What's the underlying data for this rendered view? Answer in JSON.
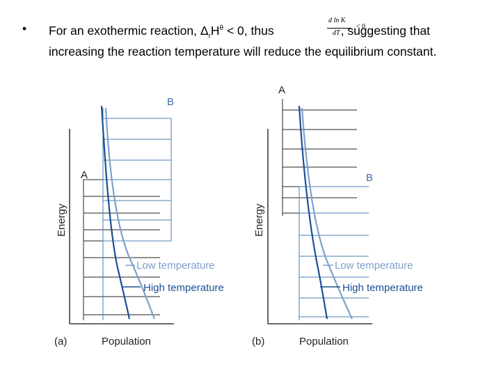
{
  "text": {
    "bullet": "•",
    "line1_a": "For an exothermic reaction, Δ",
    "line1_sub": "r",
    "line1_b": "H",
    "line1_sup": "θ",
    "line1_c": " < 0, thus",
    "line1_d": ", suggesting",
    "line2": "that increasing the reaction temperature will reduce the equilibrium constant."
  },
  "formula": {
    "numerator": "d ln K",
    "denominator": "dT",
    "condition": "< 0"
  },
  "panel_a": {
    "tag": "(a)",
    "y_label": "Energy",
    "x_label": "Population",
    "label_A": "A",
    "label_B": "B",
    "low_label": "Low temperature",
    "high_label": "High temperature"
  },
  "panel_b": {
    "tag": "(b)",
    "y_label": "Energy",
    "x_label": "Population",
    "label_A": "A",
    "label_B": "B",
    "low_label": "Low temperature",
    "high_label": "High temperature"
  },
  "colors": {
    "levels_A": "#222222",
    "levels_B": "#4a7fb5",
    "high_curve": "#1a4f95",
    "low_curve": "#7f9fc9",
    "label_B": "#3a6fa8",
    "axis": "#111111"
  }
}
